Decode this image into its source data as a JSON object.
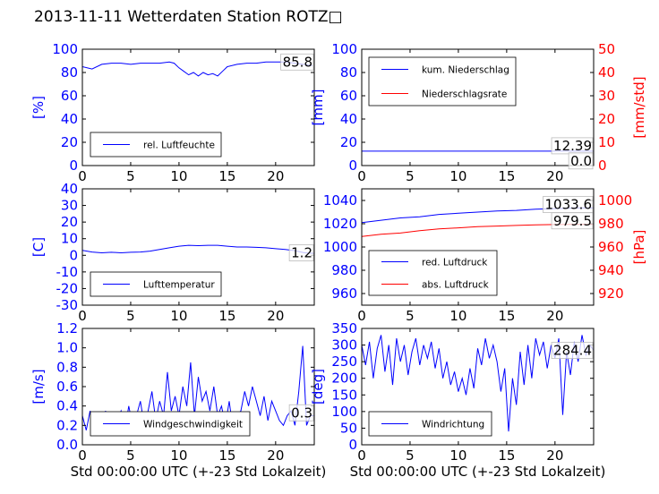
{
  "figure": {
    "title": "2013-11-11 Wetterdaten Station ROTZ□"
  },
  "chart_data": [
    {
      "id": "humidity",
      "type": "line",
      "xlim": [
        0,
        24
      ],
      "xticks": [
        0,
        5,
        10,
        15,
        20
      ],
      "ylim": [
        0,
        100
      ],
      "yticks": [
        0,
        20,
        40,
        60,
        80,
        100
      ],
      "ylabel": "[%]",
      "ylabel_color": "#0000ff",
      "legend": "bottom-left",
      "series": [
        {
          "name": "rel. Luftfeuchte",
          "color": "#0000ff",
          "x": [
            0,
            1,
            2,
            3,
            4,
            5,
            6,
            7,
            8,
            9,
            9.5,
            10,
            10.5,
            11,
            11.5,
            12,
            12.5,
            13,
            13.5,
            14,
            14.5,
            15,
            16,
            17,
            18,
            19,
            20,
            21,
            22,
            23.8
          ],
          "y": [
            85,
            83,
            87,
            88,
            88,
            87,
            88,
            88,
            88,
            89,
            88,
            84,
            81,
            78,
            80,
            77,
            80,
            78,
            79,
            77,
            81,
            85,
            87,
            88,
            88,
            89,
            89,
            89,
            88,
            86
          ]
        }
      ],
      "value_labels": [
        {
          "text": "85.8",
          "y": 89
        }
      ]
    },
    {
      "id": "precipitation",
      "type": "line",
      "xlim": [
        0,
        24
      ],
      "xticks": [
        0,
        5,
        10,
        15,
        20
      ],
      "ylim": [
        0,
        100
      ],
      "yticks": [
        0,
        20,
        40,
        60,
        80,
        100
      ],
      "ylim_right": [
        0,
        50
      ],
      "yticks_right": [
        0,
        10,
        20,
        30,
        40,
        50
      ],
      "ylabel": "[mm]",
      "ylabel_color": "#0000ff",
      "ylabel_right": "[mm/std]",
      "ylabel_right_color": "#ff0000",
      "legend": "top-left",
      "series": [
        {
          "name": "kum. Niederschlag",
          "color": "#0000ff",
          "axis": "left",
          "x": [
            0,
            24
          ],
          "y": [
            12.4,
            12.4
          ]
        },
        {
          "name": "Niederschlagsrate",
          "color": "#ff0000",
          "axis": "right",
          "x": [
            0,
            24
          ],
          "y": [
            0,
            0
          ]
        }
      ],
      "value_labels": [
        {
          "text": "12.39",
          "y": 17
        },
        {
          "text": "0.0",
          "y": 4
        }
      ]
    },
    {
      "id": "temperature",
      "type": "line",
      "xlim": [
        0,
        24
      ],
      "xticks": [
        0,
        5,
        10,
        15,
        20
      ],
      "ylim": [
        -30,
        40
      ],
      "yticks": [
        -30,
        -20,
        -10,
        0,
        10,
        20,
        30,
        40
      ],
      "ylabel": "[C]",
      "ylabel_color": "#0000ff",
      "legend": "bottom-left",
      "series": [
        {
          "name": "Lufttemperatur",
          "color": "#0000ff",
          "x": [
            0,
            1,
            2,
            3,
            4,
            5,
            6,
            7,
            8,
            9,
            10,
            11,
            12,
            13,
            14,
            15,
            16,
            17,
            18,
            19,
            20,
            21,
            22,
            23,
            24
          ],
          "y": [
            3,
            2,
            1.5,
            1.8,
            1.5,
            1.8,
            2,
            2.5,
            3.5,
            4.5,
            5.5,
            6,
            5.8,
            6,
            6,
            5.5,
            5,
            5,
            4.8,
            4.5,
            4,
            3.5,
            2.8,
            1.5,
            1.2
          ]
        }
      ],
      "value_labels": [
        {
          "text": "1.2",
          "y": 1.5
        }
      ]
    },
    {
      "id": "pressure",
      "type": "line",
      "xlim": [
        0,
        24
      ],
      "xticks": [
        0,
        5,
        10,
        15,
        20
      ],
      "ylim": [
        950,
        1050
      ],
      "yticks": [
        960,
        980,
        1000,
        1020,
        1040
      ],
      "ylim_right": [
        910,
        1010
      ],
      "yticks_right": [
        920,
        940,
        960,
        980,
        1000
      ],
      "ylabel_right": "[hPa]",
      "ylabel_right_color": "#ff0000",
      "legend": "bottom-left",
      "series": [
        {
          "name": "red. Luftdruck",
          "color": "#0000ff",
          "axis": "left",
          "x": [
            0,
            2,
            4,
            6,
            8,
            10,
            12,
            14,
            16,
            18,
            20,
            22,
            24
          ],
          "y": [
            1021,
            1023,
            1025,
            1026,
            1028,
            1029,
            1030,
            1031,
            1031.5,
            1032.5,
            1033,
            1033.5,
            1033.6
          ]
        },
        {
          "name": "abs. Luftdruck",
          "color": "#ff0000",
          "axis": "right",
          "x": [
            0,
            2,
            4,
            6,
            8,
            10,
            12,
            14,
            16,
            18,
            20,
            22,
            24
          ],
          "y": [
            969,
            971,
            972,
            974,
            975.5,
            976.5,
            977.5,
            978,
            978.5,
            979,
            979.3,
            979.5,
            979.5
          ]
        }
      ],
      "value_labels": [
        {
          "text": "1033.6",
          "y": 1036.5
        },
        {
          "text": "979.5",
          "y": 1022.5
        }
      ]
    },
    {
      "id": "windspeed",
      "type": "line",
      "xlim": [
        0,
        24
      ],
      "xticks": [
        0,
        5,
        10,
        15,
        20
      ],
      "ylim": [
        0,
        1.2
      ],
      "yticks": [
        0.0,
        0.2,
        0.4,
        0.6,
        0.8,
        1.0,
        1.2
      ],
      "ylabel": "[m/s]",
      "ylabel_color": "#0000ff",
      "xlabel": "Std 00:00:00 UTC (+-23 Std Lokalzeit)",
      "legend": "bottom-left",
      "series": [
        {
          "name": "Windgeschwindigkeit",
          "color": "#0000ff",
          "x": [
            0,
            0.4,
            0.8,
            1.2,
            1.6,
            2,
            2.4,
            2.8,
            3.2,
            3.6,
            4,
            4.4,
            4.8,
            5.2,
            5.6,
            6,
            6.4,
            6.8,
            7.2,
            7.6,
            8,
            8.4,
            8.8,
            9.2,
            9.6,
            10,
            10.4,
            10.8,
            11.2,
            11.6,
            12,
            12.4,
            12.8,
            13.2,
            13.6,
            14,
            14.4,
            14.8,
            15.2,
            15.6,
            16,
            16.4,
            16.8,
            17.2,
            17.6,
            18,
            18.4,
            18.8,
            19.2,
            19.6,
            20,
            20.4,
            20.8,
            21.2,
            21.6,
            22,
            22.4,
            22.8,
            23.2,
            23.6,
            24
          ],
          "y": [
            0.3,
            0.15,
            0.35,
            0.1,
            0.3,
            0.2,
            0.35,
            0.15,
            0.3,
            0.25,
            0.35,
            0.15,
            0.4,
            0.2,
            0.3,
            0.45,
            0.2,
            0.35,
            0.55,
            0.25,
            0.45,
            0.3,
            0.75,
            0.35,
            0.5,
            0.3,
            0.6,
            0.4,
            0.85,
            0.3,
            0.7,
            0.45,
            0.55,
            0.35,
            0.6,
            0.3,
            0.4,
            0.2,
            0.45,
            0.15,
            0.3,
            0.35,
            0.55,
            0.4,
            0.6,
            0.45,
            0.3,
            0.5,
            0.25,
            0.45,
            0.35,
            0.25,
            0.2,
            0.3,
            0.35,
            0.2,
            0.55,
            1.02,
            0.2,
            0.3,
            0.3
          ]
        }
      ],
      "value_labels": [
        {
          "text": "0.3",
          "y": 0.33
        }
      ]
    },
    {
      "id": "winddirection",
      "type": "line",
      "xlim": [
        0,
        24
      ],
      "xticks": [
        0,
        5,
        10,
        15,
        20
      ],
      "ylim": [
        0,
        350
      ],
      "yticks": [
        0,
        50,
        100,
        150,
        200,
        250,
        300,
        350
      ],
      "ylabel": "[deg]",
      "ylabel_color": "#0000ff",
      "xlabel": "Std 00:00:00 UTC (+-23 Std Lokalzeit)",
      "legend": "bottom-left",
      "series": [
        {
          "name": "Windrichtung",
          "color": "#0000ff",
          "x": [
            0,
            0.4,
            0.8,
            1.2,
            1.6,
            2,
            2.4,
            2.8,
            3.2,
            3.6,
            4,
            4.4,
            4.8,
            5.2,
            5.6,
            6,
            6.4,
            6.8,
            7.2,
            7.6,
            8,
            8.4,
            8.8,
            9.2,
            9.6,
            10,
            10.4,
            10.8,
            11.2,
            11.6,
            12,
            12.4,
            12.8,
            13.2,
            13.6,
            14,
            14.4,
            14.8,
            15.2,
            15.6,
            16,
            16.4,
            16.8,
            17.2,
            17.6,
            18,
            18.4,
            18.8,
            19.2,
            19.6,
            20,
            20.4,
            20.8,
            21.2,
            21.6,
            22,
            22.4,
            22.8,
            23.2,
            23.6,
            24
          ],
          "y": [
            300,
            240,
            310,
            200,
            290,
            330,
            220,
            300,
            180,
            320,
            250,
            300,
            210,
            280,
            320,
            240,
            300,
            260,
            310,
            230,
            290,
            200,
            250,
            180,
            220,
            160,
            200,
            150,
            230,
            170,
            290,
            240,
            320,
            260,
            300,
            250,
            160,
            230,
            40,
            200,
            120,
            280,
            180,
            300,
            200,
            320,
            270,
            310,
            230,
            300,
            260,
            320,
            90,
            280,
            210,
            310,
            250,
            330,
            270,
            300,
            284
          ]
        }
      ],
      "value_labels": [
        {
          "text": "284.4",
          "y": 284
        }
      ]
    }
  ]
}
